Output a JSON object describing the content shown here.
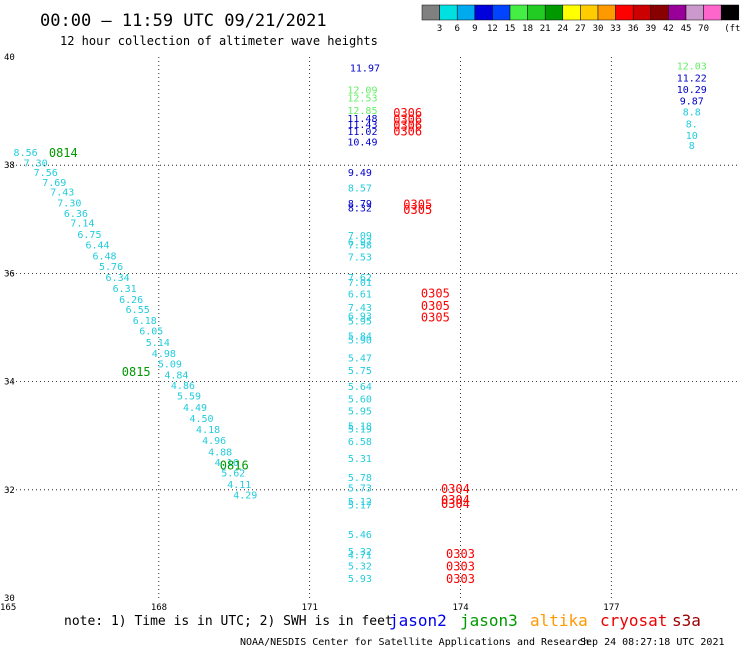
{
  "title": "00:00 – 11:59 UTC 09/21/2021",
  "subtitle": "12 hour collection of altimeter wave heights",
  "chart_data": {
    "type": "scatter",
    "xlim": [
      165,
      179.5
    ],
    "ylim": [
      30,
      40
    ],
    "x_ticks": [
      "165",
      "168",
      "171",
      "174",
      "177"
    ],
    "y_ticks": [
      "40",
      "38",
      "36",
      "34",
      "32",
      "30"
    ],
    "grid": true,
    "legend": {
      "colors": [
        "#808080",
        "#00e0e0",
        "#00aaee",
        "#0000dd",
        "#0044ff",
        "#44ee44",
        "#22cc22",
        "#009900",
        "#ffff00",
        "#ffcc00",
        "#ff9900",
        "#ff0000",
        "#cc0000",
        "#880000",
        "#990099",
        "#cc99cc",
        "#ff66cc",
        "#000000"
      ],
      "labels": [
        "3",
        "6",
        "9",
        "12",
        "15",
        "18",
        "21",
        "24",
        "27",
        "30",
        "33",
        "36",
        "39",
        "42",
        "45",
        "70",
        "(ft)"
      ]
    },
    "series": [
      {
        "points": [
          {
            "lon": 165.35,
            "lat": 38.24,
            "v": "8.56",
            "c": "#22ccdd"
          },
          {
            "lon": 165.55,
            "lat": 38.05,
            "v": "7.30",
            "c": "#22ccdd"
          },
          {
            "lon": 165.75,
            "lat": 37.87,
            "v": "7.56",
            "c": "#22ccdd"
          },
          {
            "lon": 165.92,
            "lat": 37.69,
            "v": "7.69",
            "c": "#22ccdd"
          },
          {
            "lon": 166.08,
            "lat": 37.51,
            "v": "7.43",
            "c": "#22ccdd"
          },
          {
            "lon": 166.22,
            "lat": 37.31,
            "v": "7.30",
            "c": "#22ccdd"
          },
          {
            "lon": 166.35,
            "lat": 37.12,
            "v": "6.36",
            "c": "#22ccdd"
          },
          {
            "lon": 166.48,
            "lat": 36.94,
            "v": "7.14",
            "c": "#22ccdd"
          },
          {
            "lon": 166.62,
            "lat": 36.73,
            "v": "6.75",
            "c": "#22ccdd"
          },
          {
            "lon": 166.78,
            "lat": 36.53,
            "v": "6.44",
            "c": "#22ccdd"
          },
          {
            "lon": 166.92,
            "lat": 36.33,
            "v": "6.48",
            "c": "#22ccdd"
          },
          {
            "lon": 167.05,
            "lat": 36.14,
            "v": "5.76",
            "c": "#22ccdd"
          },
          {
            "lon": 167.18,
            "lat": 35.93,
            "v": "6.34",
            "c": "#22ccdd"
          },
          {
            "lon": 167.32,
            "lat": 35.73,
            "v": "6.31",
            "c": "#22ccdd"
          },
          {
            "lon": 167.45,
            "lat": 35.53,
            "v": "6.26",
            "c": "#22ccdd"
          },
          {
            "lon": 167.58,
            "lat": 35.34,
            "v": "6.55",
            "c": "#22ccdd"
          },
          {
            "lon": 167.72,
            "lat": 35.14,
            "v": "6.18",
            "c": "#22ccdd"
          },
          {
            "lon": 167.85,
            "lat": 34.94,
            "v": "6.05",
            "c": "#22ccdd"
          },
          {
            "lon": 167.98,
            "lat": 34.73,
            "v": "5.14",
            "c": "#22ccdd"
          },
          {
            "lon": 168.1,
            "lat": 34.53,
            "v": "4.98",
            "c": "#22ccdd"
          },
          {
            "lon": 168.22,
            "lat": 34.33,
            "v": "5.09",
            "c": "#22ccdd"
          },
          {
            "lon": 168.35,
            "lat": 34.13,
            "v": "4.84",
            "c": "#22ccdd"
          },
          {
            "lon": 168.48,
            "lat": 33.94,
            "v": "4.86",
            "c": "#22ccdd"
          },
          {
            "lon": 168.6,
            "lat": 33.74,
            "v": "5.59",
            "c": "#22ccdd"
          },
          {
            "lon": 168.72,
            "lat": 33.53,
            "v": "4.49",
            "c": "#22ccdd"
          },
          {
            "lon": 168.85,
            "lat": 33.33,
            "v": "4.50",
            "c": "#22ccdd"
          },
          {
            "lon": 168.98,
            "lat": 33.12,
            "v": "4.18",
            "c": "#22ccdd"
          },
          {
            "lon": 169.1,
            "lat": 32.92,
            "v": "4.96",
            "c": "#22ccdd"
          },
          {
            "lon": 169.22,
            "lat": 32.71,
            "v": "4.88",
            "c": "#22ccdd"
          },
          {
            "lon": 169.35,
            "lat": 32.51,
            "v": "4.16",
            "c": "#22ccdd"
          },
          {
            "lon": 169.48,
            "lat": 32.32,
            "v": "5.62",
            "c": "#22ccdd"
          },
          {
            "lon": 169.6,
            "lat": 32.11,
            "v": "4.11",
            "c": "#22ccdd"
          },
          {
            "lon": 169.72,
            "lat": 31.91,
            "v": "4.29",
            "c": "#22ccdd"
          }
        ]
      },
      {
        "points": [
          {
            "lon": 172.1,
            "lat": 39.81,
            "v": "11.97",
            "c": "#0000cc"
          },
          {
            "lon": 172.05,
            "lat": 39.4,
            "v": "12.09",
            "c": "#66ee66"
          },
          {
            "lon": 172.05,
            "lat": 39.25,
            "v": "12.53",
            "c": "#66ee66"
          },
          {
            "lon": 172.05,
            "lat": 39.02,
            "v": "12.85",
            "c": "#66ee66"
          },
          {
            "lon": 172.05,
            "lat": 38.87,
            "v": "11.48",
            "c": "#0000cc"
          },
          {
            "lon": 172.05,
            "lat": 38.76,
            "v": "11.43",
            "c": "#0000cc"
          },
          {
            "lon": 172.05,
            "lat": 38.63,
            "v": "11.02",
            "c": "#0000cc"
          },
          {
            "lon": 172.05,
            "lat": 38.44,
            "v": "10.49",
            "c": "#0000cc"
          },
          {
            "lon": 172.0,
            "lat": 37.87,
            "v": "9.49",
            "c": "#0000cc"
          },
          {
            "lon": 172.0,
            "lat": 37.59,
            "v": "8.57",
            "c": "#22ccdd"
          },
          {
            "lon": 172.0,
            "lat": 37.3,
            "v": "8.79",
            "c": "#0000cc"
          },
          {
            "lon": 172.0,
            "lat": 37.22,
            "v": "8.32",
            "c": "#0000cc"
          },
          {
            "lon": 172.0,
            "lat": 36.71,
            "v": "7.09",
            "c": "#22ccdd"
          },
          {
            "lon": 172.0,
            "lat": 36.59,
            "v": "6.97",
            "c": "#22ccdd"
          },
          {
            "lon": 172.0,
            "lat": 36.53,
            "v": "7.58",
            "c": "#22ccdd"
          },
          {
            "lon": 172.0,
            "lat": 36.31,
            "v": "7.53",
            "c": "#22ccdd"
          },
          {
            "lon": 172.0,
            "lat": 35.93,
            "v": "7.62",
            "c": "#22ccdd"
          },
          {
            "lon": 172.0,
            "lat": 35.84,
            "v": "7.01",
            "c": "#22ccdd"
          },
          {
            "lon": 172.0,
            "lat": 35.63,
            "v": "6.61",
            "c": "#22ccdd"
          },
          {
            "lon": 172.0,
            "lat": 35.38,
            "v": "7.43",
            "c": "#22ccdd"
          },
          {
            "lon": 172.0,
            "lat": 35.22,
            "v": "6.93",
            "c": "#22ccdd"
          },
          {
            "lon": 172.0,
            "lat": 35.13,
            "v": "5.95",
            "c": "#22ccdd"
          },
          {
            "lon": 172.0,
            "lat": 34.85,
            "v": "5.84",
            "c": "#22ccdd"
          },
          {
            "lon": 172.0,
            "lat": 34.78,
            "v": "5.90",
            "c": "#22ccdd"
          },
          {
            "lon": 172.0,
            "lat": 34.45,
            "v": "5.47",
            "c": "#22ccdd"
          },
          {
            "lon": 172.0,
            "lat": 34.21,
            "v": "5.75",
            "c": "#22ccdd"
          },
          {
            "lon": 172.0,
            "lat": 33.92,
            "v": "5.64",
            "c": "#22ccdd"
          },
          {
            "lon": 172.0,
            "lat": 33.69,
            "v": "5.60",
            "c": "#22ccdd"
          },
          {
            "lon": 172.0,
            "lat": 33.47,
            "v": "5.95",
            "c": "#22ccdd"
          },
          {
            "lon": 172.0,
            "lat": 33.19,
            "v": "5.18",
            "c": "#22ccdd"
          },
          {
            "lon": 172.0,
            "lat": 33.13,
            "v": "5.19",
            "c": "#22ccdd"
          },
          {
            "lon": 172.0,
            "lat": 32.9,
            "v": "6.58",
            "c": "#22ccdd"
          },
          {
            "lon": 172.0,
            "lat": 32.59,
            "v": "5.31",
            "c": "#22ccdd"
          },
          {
            "lon": 172.0,
            "lat": 32.24,
            "v": "5.78",
            "c": "#22ccdd"
          },
          {
            "lon": 172.0,
            "lat": 32.04,
            "v": "5.73",
            "c": "#22ccdd"
          },
          {
            "lon": 172.0,
            "lat": 31.79,
            "v": "5.12",
            "c": "#22ccdd"
          },
          {
            "lon": 172.0,
            "lat": 31.73,
            "v": "5.17",
            "c": "#22ccdd"
          },
          {
            "lon": 172.0,
            "lat": 31.18,
            "v": "5.46",
            "c": "#22ccdd"
          },
          {
            "lon": 172.0,
            "lat": 30.87,
            "v": "5.32",
            "c": "#22ccdd"
          },
          {
            "lon": 172.0,
            "lat": 30.8,
            "v": "4.71",
            "c": "#22ccdd"
          },
          {
            "lon": 172.0,
            "lat": 30.6,
            "v": "5.32",
            "c": "#22ccdd"
          },
          {
            "lon": 172.0,
            "lat": 30.37,
            "v": "5.93",
            "c": "#22ccdd"
          }
        ]
      },
      {
        "points": [
          {
            "lon": 178.6,
            "lat": 39.84,
            "v": "12.03",
            "c": "#66ee66"
          },
          {
            "lon": 178.6,
            "lat": 39.62,
            "v": "11.22",
            "c": "#0000cc"
          },
          {
            "lon": 178.6,
            "lat": 39.41,
            "v": "10.29",
            "c": "#0000cc"
          },
          {
            "lon": 178.6,
            "lat": 39.2,
            "v": "9.87",
            "c": "#0000cc"
          },
          {
            "lon": 178.6,
            "lat": 38.99,
            "v": "8.8",
            "c": "#22ccdd"
          },
          {
            "lon": 178.6,
            "lat": 38.77,
            "v": "8.",
            "c": "#22ccdd"
          },
          {
            "lon": 178.6,
            "lat": 38.56,
            "v": "10",
            "c": "#22ccdd"
          },
          {
            "lon": 178.6,
            "lat": 38.37,
            "v": "8",
            "c": "#22ccdd"
          }
        ]
      }
    ],
    "pass_labels": [
      {
        "text": "0814",
        "lon": 166.1,
        "lat": 38.24,
        "c": "#009900"
      },
      {
        "text": "0815",
        "lon": 167.55,
        "lat": 34.2,
        "c": "#009900"
      },
      {
        "text": "0816",
        "lon": 169.5,
        "lat": 32.47,
        "c": "#009900"
      },
      {
        "text": "0306",
        "lon": 172.95,
        "lat": 38.98,
        "c": "#ff0000"
      },
      {
        "text": "0306",
        "lon": 172.95,
        "lat": 38.86,
        "c": "#ff0000"
      },
      {
        "text": "0306",
        "lon": 172.95,
        "lat": 38.75,
        "c": "#ff0000"
      },
      {
        "text": "0306",
        "lon": 172.95,
        "lat": 38.64,
        "c": "#ff0000"
      },
      {
        "text": "0305",
        "lon": 173.15,
        "lat": 37.29,
        "c": "#ff0000"
      },
      {
        "text": "0305",
        "lon": 173.15,
        "lat": 37.19,
        "c": "#ff0000"
      },
      {
        "text": "0305",
        "lon": 173.5,
        "lat": 35.65,
        "c": "#ff0000"
      },
      {
        "text": "0305",
        "lon": 173.5,
        "lat": 35.42,
        "c": "#ff0000"
      },
      {
        "text": "0305",
        "lon": 173.5,
        "lat": 35.2,
        "c": "#ff0000"
      },
      {
        "text": "0304",
        "lon": 173.9,
        "lat": 32.03,
        "c": "#ff0000"
      },
      {
        "text": "0304",
        "lon": 173.9,
        "lat": 31.83,
        "c": "#ff0000"
      },
      {
        "text": "0304",
        "lon": 173.9,
        "lat": 31.76,
        "c": "#ff0000"
      },
      {
        "text": "0303",
        "lon": 174.0,
        "lat": 30.83,
        "c": "#ff0000"
      },
      {
        "text": "0303",
        "lon": 174.0,
        "lat": 30.6,
        "c": "#ff0000"
      },
      {
        "text": "0303",
        "lon": 174.0,
        "lat": 30.37,
        "c": "#ff0000"
      }
    ]
  },
  "footer": {
    "note": "note: 1) Time is in UTC; 2) SWH is in feet",
    "satellites": [
      {
        "name": "jason2",
        "color": "#0000ee"
      },
      {
        "name": "jason3",
        "color": "#009900"
      },
      {
        "name": "altika",
        "color": "#ff9900"
      },
      {
        "name": "cryosat",
        "color": "#ee0000"
      },
      {
        "name": "s3a",
        "color": "#990000"
      }
    ],
    "credit": "NOAA/NESDIS Center for Satellite Applications and Research",
    "timestamp": "Sep 24 08:27:18 UTC 2021"
  }
}
